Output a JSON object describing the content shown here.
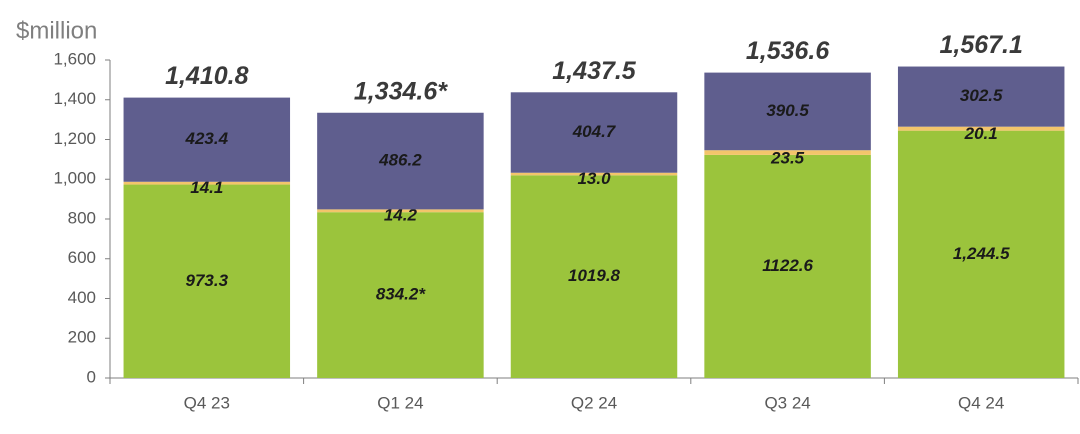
{
  "chart_data": {
    "type": "stacked_bar",
    "y_label": "$million",
    "categories": [
      "Q4 23",
      "Q1 24",
      "Q2 24",
      "Q3 24",
      "Q4 24"
    ],
    "series": [
      {
        "color": "#9bc43c",
        "values": [
          973.3,
          834.2,
          1019.8,
          1122.6,
          1244.5
        ],
        "value_labels": [
          "973.3",
          "834.2*",
          "1019.8",
          "1122.6",
          "1,244.5"
        ]
      },
      {
        "color": "#f3c56b",
        "values": [
          14.1,
          14.2,
          13.0,
          23.5,
          20.1
        ],
        "value_labels": [
          "14.1",
          "14.2",
          "13.0",
          "23.5",
          "20.1"
        ]
      },
      {
        "color": "#5f5e8e",
        "values": [
          423.4,
          486.2,
          404.7,
          390.5,
          302.5
        ]
      }
    ],
    "totals": [
      1410.8,
      1334.6,
      1437.5,
      1536.6,
      1567.1
    ],
    "total_labels": [
      "1,410.8",
      "1,334.6*",
      "1,437.5",
      "1,536.6",
      "1,567.1"
    ],
    "ylim": [
      0,
      1600
    ],
    "yticks": [
      0,
      200,
      400,
      600,
      800,
      {
        "value": 1000,
        "label": "1,000"
      },
      {
        "value": 1200,
        "label": "1,200"
      },
      {
        "value": 1400,
        "label": "1,400"
      },
      {
        "value": 1600,
        "label": "1,600"
      }
    ]
  }
}
